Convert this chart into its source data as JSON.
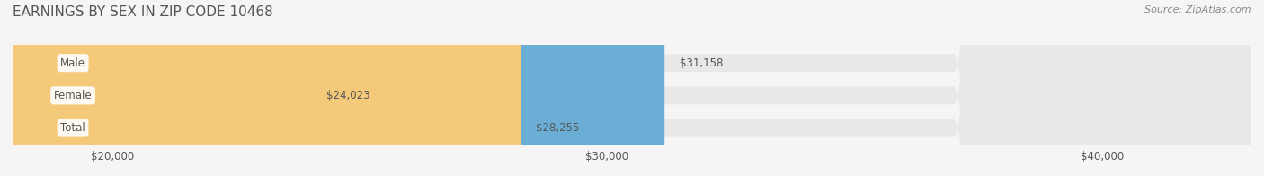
{
  "title": "EARNINGS BY SEX IN ZIP CODE 10468",
  "source": "Source: ZipAtlas.com",
  "categories": [
    "Male",
    "Female",
    "Total"
  ],
  "values": [
    31158,
    24023,
    28255
  ],
  "bar_colors": [
    "#6aaed6",
    "#f4a6c0",
    "#f5c97a"
  ],
  "label_colors": [
    "#6aaed6",
    "#f4a6c0",
    "#f5c97a"
  ],
  "value_labels": [
    "$31,158",
    "$24,023",
    "$28,255"
  ],
  "xlim_min": 18000,
  "xlim_max": 43000,
  "xticks": [
    20000,
    30000,
    40000
  ],
  "xtick_labels": [
    "$20,000",
    "$30,000",
    "$40,000"
  ],
  "bg_color": "#f5f5f5",
  "bar_bg_color": "#e8e8e8",
  "title_fontsize": 11,
  "bar_height": 0.55,
  "title_color": "#555555",
  "label_text_color": "#555555",
  "source_color": "#888888"
}
